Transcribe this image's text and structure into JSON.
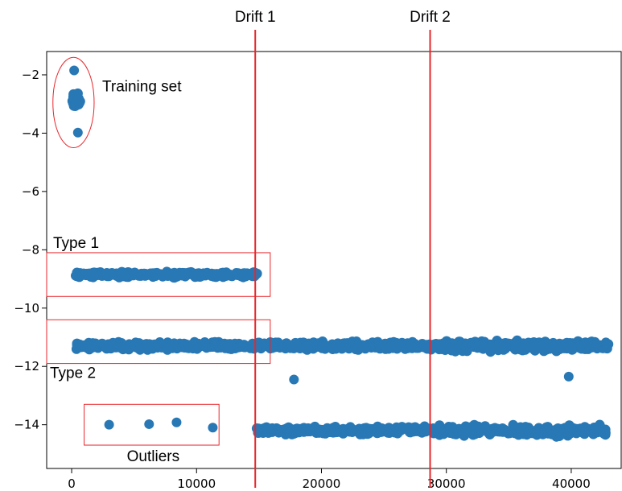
{
  "chart_data": {
    "type": "scatter",
    "title": "",
    "xlabel": "",
    "ylabel": "",
    "xlim": [
      -2000,
      44000
    ],
    "ylim": [
      -15.5,
      -1.2
    ],
    "xticks": [
      0,
      10000,
      20000,
      30000,
      40000
    ],
    "xtick_labels": [
      "0",
      "10000",
      "20000",
      "30000",
      "40000"
    ],
    "yticks": [
      -2,
      -4,
      -6,
      -8,
      -10,
      -12,
      -14
    ],
    "ytick_labels": [
      "−2",
      "−4",
      "−6",
      "−8",
      "−10",
      "−12",
      "−14"
    ],
    "grid": false,
    "marker_color": "#2878b5",
    "annotation_color": "#e8262b",
    "clusters": [
      {
        "name": "training",
        "x_range": [
          0,
          700
        ],
        "y_center": -2.9,
        "y_spread": 0.35
      },
      {
        "name": "type1",
        "x_range": [
          300,
          15000
        ],
        "y_center": -8.85,
        "y_spread": 0.12
      },
      {
        "name": "type2",
        "x_range": [
          300,
          43000
        ],
        "y_center": -11.3,
        "y_spread": 0.18
      },
      {
        "name": "lower",
        "x_range": [
          14800,
          43000
        ],
        "y_center": -14.2,
        "y_spread": 0.18
      }
    ],
    "points": [
      {
        "x": 200,
        "y": -1.85
      },
      {
        "x": 500,
        "y": -3.98
      },
      {
        "x": 3000,
        "y": -14.0
      },
      {
        "x": 6200,
        "y": -13.98
      },
      {
        "x": 8400,
        "y": -13.92
      },
      {
        "x": 11300,
        "y": -14.1
      },
      {
        "x": 17800,
        "y": -12.45
      },
      {
        "x": 39800,
        "y": -12.35
      }
    ],
    "vlines": [
      {
        "label": "Drift 1",
        "x": 14700
      },
      {
        "label": "Drift 2",
        "x": 28700
      }
    ],
    "annotations": [
      {
        "label": "Training set",
        "shape": "ellipse",
        "x_range": [
          -1500,
          1800
        ],
        "y_range": [
          -4.5,
          -1.4
        ]
      },
      {
        "label": "Type 1",
        "shape": "rect",
        "x_range": [
          -2000,
          15900
        ],
        "y_range": [
          -9.6,
          -8.1
        ]
      },
      {
        "label": "Type 2",
        "shape": "rect",
        "x_range": [
          -2000,
          15900
        ],
        "y_range": [
          -11.9,
          -10.4
        ]
      },
      {
        "label": "Outliers",
        "shape": "rect",
        "x_range": [
          1000,
          11800
        ],
        "y_range": [
          -14.7,
          -13.3
        ]
      }
    ]
  }
}
